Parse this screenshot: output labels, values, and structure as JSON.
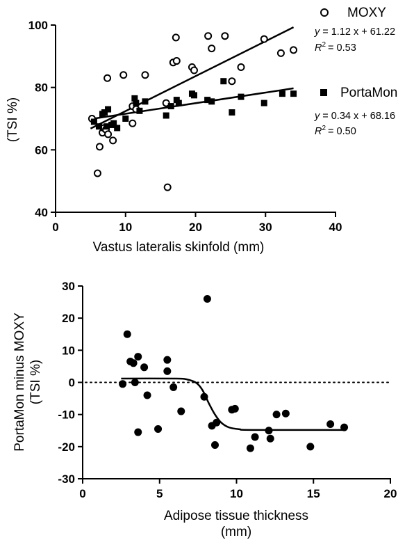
{
  "chart_data": [
    {
      "type": "scatter",
      "title": "",
      "xlabel": "Vastus lateralis skinfold (mm)",
      "ylabel": "(TSI %)",
      "xlim": [
        0,
        40
      ],
      "ylim": [
        40,
        100
      ],
      "xticks": [
        0,
        10,
        20,
        30,
        40
      ],
      "yticks": [
        40,
        60,
        80,
        100
      ],
      "grid": false,
      "legend_position": "right",
      "series": [
        {
          "name": "MOXY",
          "marker": "open-circle",
          "color": "#000000",
          "equation_line1": "= 1.12 x + 61.22",
          "equation_line2": "= 0.53",
          "fit": {
            "slope": 1.12,
            "intercept": 61.22,
            "x_range": [
              5,
              34
            ]
          },
          "points": [
            [
              5.2,
              70
            ],
            [
              6.0,
              52.5
            ],
            [
              6.3,
              61
            ],
            [
              6.7,
              65.5
            ],
            [
              6.9,
              67
            ],
            [
              7.2,
              66.5
            ],
            [
              7.4,
              83
            ],
            [
              7.5,
              65
            ],
            [
              8.2,
              63
            ],
            [
              9.7,
              84
            ],
            [
              11.0,
              74
            ],
            [
              11.0,
              68.5
            ],
            [
              11.5,
              73
            ],
            [
              12.8,
              84
            ],
            [
              15.8,
              75
            ],
            [
              16.0,
              48
            ],
            [
              16.8,
              88
            ],
            [
              17.2,
              96
            ],
            [
              17.3,
              88.5
            ],
            [
              19.5,
              86.5
            ],
            [
              19.8,
              85.5
            ],
            [
              21.8,
              96.5
            ],
            [
              22.3,
              92.5
            ],
            [
              24.2,
              96.5
            ],
            [
              25.2,
              82
            ],
            [
              26.5,
              86.5
            ],
            [
              29.8,
              95.5
            ],
            [
              32.2,
              91
            ],
            [
              34.0,
              92
            ]
          ]
        },
        {
          "name": "PortaMon",
          "marker": "filled-square",
          "color": "#000000",
          "equation_line1": "= 0.34 x + 68.16",
          "equation_line2": "= 0.50",
          "fit": {
            "slope": 0.34,
            "intercept": 68.16,
            "x_range": [
              5,
              34
            ]
          },
          "points": [
            [
              5.5,
              69
            ],
            [
              6.2,
              67.5
            ],
            [
              6.7,
              71.5
            ],
            [
              7.0,
              72
            ],
            [
              7.3,
              67.5
            ],
            [
              7.5,
              73
            ],
            [
              8.0,
              68
            ],
            [
              8.3,
              68.5
            ],
            [
              8.8,
              67
            ],
            [
              10.0,
              70
            ],
            [
              11.3,
              76.5
            ],
            [
              11.5,
              75
            ],
            [
              12.0,
              72.5
            ],
            [
              12.8,
              75.5
            ],
            [
              15.8,
              71
            ],
            [
              16.5,
              74
            ],
            [
              17.3,
              76
            ],
            [
              17.6,
              75
            ],
            [
              19.5,
              78
            ],
            [
              19.8,
              77.5
            ],
            [
              21.7,
              76
            ],
            [
              22.3,
              75.5
            ],
            [
              24.0,
              82
            ],
            [
              25.2,
              72
            ],
            [
              26.5,
              77
            ],
            [
              29.8,
              75
            ],
            [
              32.4,
              78
            ],
            [
              34.0,
              78
            ]
          ]
        }
      ]
    },
    {
      "type": "scatter",
      "title": "",
      "xlabel_line1": "Adipose tissue thickness",
      "xlabel_line2": "(mm)",
      "ylabel_line1": "PortaMon minus MOXY",
      "ylabel_line2": "(TSI %)",
      "xlim": [
        0,
        20
      ],
      "ylim": [
        -30,
        30
      ],
      "xticks": [
        0,
        5,
        10,
        15,
        20
      ],
      "yticks": [
        -30,
        -20,
        -10,
        0,
        10,
        20,
        30
      ],
      "grid": false,
      "reference_line_y": 0,
      "series": [
        {
          "name": "",
          "marker": "filled-circle",
          "color": "#000000",
          "points": [
            [
              2.6,
              -0.5
            ],
            [
              2.9,
              15
            ],
            [
              3.1,
              6.5
            ],
            [
              3.3,
              6
            ],
            [
              3.4,
              0
            ],
            [
              3.6,
              -15.5
            ],
            [
              3.6,
              8
            ],
            [
              4.0,
              4.7
            ],
            [
              4.2,
              -4
            ],
            [
              4.9,
              -14.5
            ],
            [
              5.5,
              7
            ],
            [
              5.5,
              3.5
            ],
            [
              5.9,
              -1.5
            ],
            [
              6.4,
              -9
            ],
            [
              7.9,
              -4.5
            ],
            [
              8.1,
              26
            ],
            [
              8.4,
              -13.5
            ],
            [
              8.6,
              -19.5
            ],
            [
              8.7,
              -12.5
            ],
            [
              9.7,
              -8.5
            ],
            [
              9.9,
              -8.2
            ],
            [
              10.9,
              -20.5
            ],
            [
              11.2,
              -17
            ],
            [
              12.1,
              -15
            ],
            [
              12.2,
              -17.5
            ],
            [
              12.6,
              -10
            ],
            [
              13.2,
              -9.7
            ],
            [
              14.8,
              -20
            ],
            [
              16.1,
              -13
            ],
            [
              17.0,
              -14
            ]
          ]
        }
      ],
      "fit_curve": [
        [
          2.5,
          1.2
        ],
        [
          6.0,
          1.2
        ],
        [
          6.8,
          0.9
        ],
        [
          7.4,
          -0.2
        ],
        [
          7.8,
          -2.5
        ],
        [
          8.2,
          -6.5
        ],
        [
          8.6,
          -10.0
        ],
        [
          9.0,
          -12.5
        ],
        [
          9.5,
          -14.0
        ],
        [
          10.2,
          -14.6
        ],
        [
          11.0,
          -14.8
        ],
        [
          17.0,
          -14.8
        ]
      ]
    }
  ]
}
